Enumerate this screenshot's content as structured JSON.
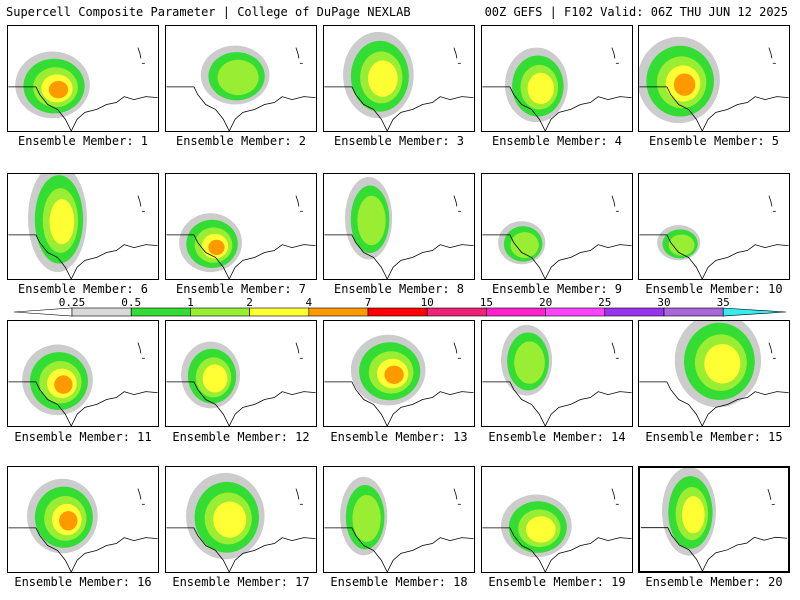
{
  "header": {
    "left": "Supercell Composite Parameter | College of DuPage NEXLAB",
    "right": "00Z GEFS | F102 Valid: 06Z THU JUN 12 2025"
  },
  "members": [
    {
      "label": "Ensemble Member: 1"
    },
    {
      "label": "Ensemble Member: 2"
    },
    {
      "label": "Ensemble Member: 3"
    },
    {
      "label": "Ensemble Member: 4"
    },
    {
      "label": "Ensemble Member: 5"
    },
    {
      "label": "Ensemble Member: 6"
    },
    {
      "label": "Ensemble Member: 7"
    },
    {
      "label": "Ensemble Member: 8"
    },
    {
      "label": "Ensemble Member: 9"
    },
    {
      "label": "Ensemble Member: 10"
    },
    {
      "label": "Ensemble Member: 11"
    },
    {
      "label": "Ensemble Member: 12"
    },
    {
      "label": "Ensemble Member: 13"
    },
    {
      "label": "Ensemble Member: 14"
    },
    {
      "label": "Ensemble Member: 15"
    },
    {
      "label": "Ensemble Member: 16"
    },
    {
      "label": "Ensemble Member: 17"
    },
    {
      "label": "Ensemble Member: 18"
    },
    {
      "label": "Ensemble Member: 19"
    },
    {
      "label": "Ensemble Member: 20",
      "selected": true
    }
  ],
  "colorbar": {
    "ticks": [
      "0.25",
      "0.5",
      "1",
      "2",
      "4",
      "7",
      "10",
      "15",
      "20",
      "25",
      "30",
      "35"
    ],
    "colors": [
      "#d9d9d9",
      "#33dd33",
      "#99ee33",
      "#ffff33",
      "#ff9900",
      "#ff0000",
      "#ee2277",
      "#ff22cc",
      "#ff44ff",
      "#9933ee",
      "#aa66dd",
      "#33eeee"
    ]
  }
}
